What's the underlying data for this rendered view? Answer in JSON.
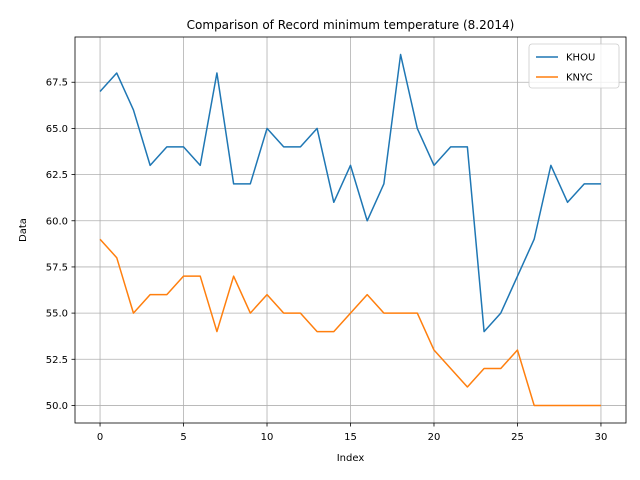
{
  "chart_data": {
    "type": "line",
    "title": "Comparison of Record minimum temperature (8.2014)",
    "xlabel": "Index",
    "ylabel": "Data",
    "xlim": [
      -1.5,
      31.5
    ],
    "ylim": [
      49.05,
      69.95
    ],
    "xticks": [
      0,
      5,
      10,
      15,
      20,
      25,
      30
    ],
    "xtick_labels": [
      "0",
      "5",
      "10",
      "15",
      "20",
      "25",
      "30"
    ],
    "yticks": [
      50.0,
      52.5,
      55.0,
      57.5,
      60.0,
      62.5,
      65.0,
      67.5
    ],
    "ytick_labels": [
      "50.0",
      "52.5",
      "55.0",
      "57.5",
      "60.0",
      "62.5",
      "65.0",
      "67.5"
    ],
    "grid": true,
    "legend_position": "upper right",
    "x": [
      0,
      1,
      2,
      3,
      4,
      5,
      6,
      7,
      8,
      9,
      10,
      11,
      12,
      13,
      14,
      15,
      16,
      17,
      18,
      19,
      20,
      21,
      22,
      23,
      24,
      25,
      26,
      27,
      28,
      29,
      30
    ],
    "series": [
      {
        "name": "KHOU",
        "color": "#1f77b4",
        "values": [
          67,
          68,
          66,
          63,
          64,
          64,
          63,
          68,
          62,
          62,
          65,
          64,
          64,
          65,
          61,
          63,
          60,
          62,
          69,
          65,
          63,
          64,
          64,
          54,
          55,
          57,
          59,
          63,
          61,
          62,
          62
        ]
      },
      {
        "name": "KNYC",
        "color": "#ff7f0e",
        "values": [
          59,
          58,
          55,
          56,
          56,
          57,
          57,
          54,
          57,
          55,
          56,
          55,
          55,
          54,
          54,
          55,
          56,
          55,
          55,
          55,
          53,
          52,
          51,
          52,
          52,
          53,
          50,
          50,
          50,
          50,
          50
        ]
      }
    ]
  }
}
